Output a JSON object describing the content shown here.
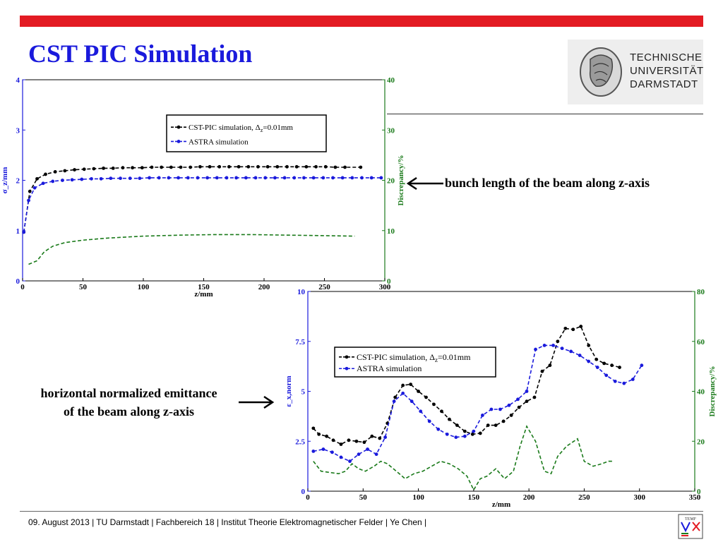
{
  "slide": {
    "title": "CST PIC Simulation",
    "accent_color": "#e31b23",
    "title_color": "#1a1adc"
  },
  "logo": {
    "lines": [
      "TECHNISCHE",
      "UNIVERSITÄT",
      "DARMSTADT"
    ],
    "icon": "tu-darmstadt-athena-logo"
  },
  "annotations": {
    "top_label": "bunch length of the beam along z-axis",
    "bottom_label_line1": "horizontal normalized emittance",
    "bottom_label_line2": "of the beam along z-axis"
  },
  "footer": {
    "text": "09. August 2013  |  TU Darmstadt  |  Fachbereich 18  |  Institut Theorie Elektromagnetischer Felder  |  Ye Chen |",
    "icon": "temf-logo-icon"
  },
  "chart_data": [
    {
      "type": "line",
      "xlabel": "z/mm",
      "ylabel": "σ_z/mm",
      "y2label": "Discrepancy/%",
      "xlim": [
        0,
        300
      ],
      "ylim": [
        0,
        4
      ],
      "y2lim": [
        0,
        40
      ],
      "xticks": [
        "0",
        "50",
        "100",
        "150",
        "200",
        "250",
        "300"
      ],
      "yticks": [
        "0",
        "1",
        "2",
        "3",
        "4"
      ],
      "y2ticks": [
        "0",
        "10",
        "20",
        "30",
        "40"
      ],
      "legend": [
        "CST-PIC simulation, Δ",
        "z",
        "=0.01mm",
        "ASTRA simulation"
      ],
      "legend_position": "top-right",
      "series": [
        {
          "name": "CST-PIC simulation, Δz=0.01mm",
          "color": "#000000",
          "axis": "left",
          "x": [
            1,
            6,
            12,
            19,
            27,
            35,
            43,
            51,
            59,
            67,
            75,
            83,
            91,
            99,
            107,
            115,
            123,
            131,
            139,
            147,
            155,
            163,
            171,
            179,
            187,
            195,
            203,
            211,
            219,
            227,
            235,
            243,
            251,
            259,
            267,
            280
          ],
          "y": [
            0.97,
            1.78,
            2.03,
            2.12,
            2.17,
            2.19,
            2.21,
            2.22,
            2.23,
            2.24,
            2.24,
            2.25,
            2.25,
            2.25,
            2.26,
            2.26,
            2.26,
            2.26,
            2.26,
            2.27,
            2.27,
            2.27,
            2.27,
            2.27,
            2.27,
            2.27,
            2.27,
            2.27,
            2.27,
            2.27,
            2.27,
            2.27,
            2.27,
            2.26,
            2.26,
            2.26
          ]
        },
        {
          "name": "ASTRA simulation",
          "color": "#1a1adc",
          "axis": "left",
          "x": [
            1,
            5,
            10,
            17,
            25,
            33,
            41,
            49,
            57,
            65,
            73,
            81,
            89,
            97,
            105,
            113,
            121,
            129,
            137,
            145,
            153,
            161,
            169,
            177,
            185,
            193,
            201,
            209,
            217,
            225,
            233,
            241,
            249,
            257,
            265,
            273,
            281,
            289,
            297
          ],
          "y": [
            0.97,
            1.6,
            1.85,
            1.94,
            1.98,
            2.0,
            2.01,
            2.02,
            2.03,
            2.03,
            2.04,
            2.04,
            2.04,
            2.04,
            2.05,
            2.05,
            2.05,
            2.05,
            2.05,
            2.05,
            2.05,
            2.05,
            2.05,
            2.05,
            2.05,
            2.05,
            2.05,
            2.05,
            2.05,
            2.05,
            2.05,
            2.05,
            2.05,
            2.05,
            2.05,
            2.05,
            2.05,
            2.05,
            2.05
          ]
        },
        {
          "name": "Discrepancy",
          "color": "#1a7a1a",
          "axis": "right",
          "x": [
            5,
            12,
            18,
            25,
            35,
            50,
            70,
            100,
            130,
            160,
            190,
            220,
            250,
            275
          ],
          "y": [
            3.3,
            4.0,
            5.8,
            6.9,
            7.6,
            8.1,
            8.5,
            8.9,
            9.1,
            9.2,
            9.2,
            9.1,
            9.0,
            8.9
          ]
        }
      ]
    },
    {
      "type": "line",
      "xlabel": "z/mm",
      "ylabel": "ε_x,norm",
      "y2label": "Discrepancy/%",
      "xlim": [
        0,
        350
      ],
      "ylim": [
        0,
        10
      ],
      "y2lim": [
        0,
        80
      ],
      "xticks": [
        "0",
        "50",
        "100",
        "150",
        "200",
        "250",
        "300",
        "350"
      ],
      "yticks": [
        "0",
        "2.5",
        "5",
        "7.5",
        "10"
      ],
      "y2ticks": [
        "0",
        "20",
        "40",
        "60",
        "80"
      ],
      "legend": [
        "CST-PIC simulation, Δ",
        "z",
        "=0.01mm",
        "ASTRA simulation"
      ],
      "legend_position": "center",
      "series": [
        {
          "name": "CST-PIC simulation, Δz=0.01mm",
          "color": "#000000",
          "axis": "left",
          "x": [
            5,
            10,
            17,
            23,
            30,
            37,
            44,
            51,
            58,
            65,
            72,
            79,
            86,
            93,
            100,
            107,
            114,
            121,
            128,
            135,
            142,
            149,
            156,
            163,
            170,
            177,
            184,
            191,
            198,
            205,
            212,
            219,
            226,
            233,
            240,
            247,
            254,
            261,
            268,
            275,
            282
          ],
          "y": [
            3.15,
            2.85,
            2.75,
            2.55,
            2.35,
            2.55,
            2.5,
            2.45,
            2.75,
            2.65,
            3.4,
            4.7,
            5.3,
            5.35,
            5.0,
            4.7,
            4.35,
            4.0,
            3.6,
            3.3,
            3.0,
            2.85,
            2.9,
            3.3,
            3.3,
            3.5,
            3.8,
            4.2,
            4.5,
            4.7,
            6.0,
            6.3,
            7.5,
            8.15,
            8.1,
            8.25,
            7.3,
            6.6,
            6.4,
            6.3,
            6.2
          ]
        },
        {
          "name": "ASTRA simulation",
          "color": "#1a1adc",
          "axis": "left",
          "x": [
            5,
            14,
            22,
            30,
            38,
            46,
            54,
            62,
            70,
            78,
            86,
            94,
            102,
            110,
            118,
            126,
            134,
            142,
            150,
            158,
            166,
            174,
            182,
            190,
            198,
            206,
            214,
            222,
            230,
            238,
            246,
            254,
            262,
            270,
            278,
            286,
            294,
            302
          ],
          "y": [
            2.0,
            2.1,
            1.95,
            1.7,
            1.5,
            1.85,
            2.1,
            1.85,
            2.7,
            4.5,
            4.9,
            4.5,
            4.0,
            3.5,
            3.1,
            2.85,
            2.7,
            2.75,
            3.0,
            3.8,
            4.1,
            4.1,
            4.3,
            4.6,
            5.0,
            7.1,
            7.3,
            7.3,
            7.15,
            7.0,
            6.8,
            6.5,
            6.2,
            5.8,
            5.5,
            5.4,
            5.6,
            6.3
          ]
        },
        {
          "name": "Discrepancy",
          "color": "#1a7a1a",
          "axis": "right",
          "x": [
            5,
            12,
            20,
            28,
            34,
            40,
            46,
            52,
            60,
            66,
            72,
            80,
            88,
            96,
            104,
            112,
            120,
            128,
            136,
            144,
            150,
            156,
            162,
            170,
            178,
            186,
            192,
            198,
            206,
            214,
            220,
            226,
            234,
            244,
            250,
            258,
            266,
            272,
            276
          ],
          "y": [
            12,
            8,
            7.5,
            7,
            8,
            11,
            9,
            8,
            10,
            12,
            11,
            8,
            5,
            7,
            8,
            10,
            12,
            11,
            9,
            6,
            0.5,
            5,
            6,
            9,
            5,
            8,
            18,
            26,
            20,
            8,
            7,
            14,
            18,
            21,
            12,
            10,
            11,
            12,
            12
          ]
        }
      ]
    }
  ]
}
